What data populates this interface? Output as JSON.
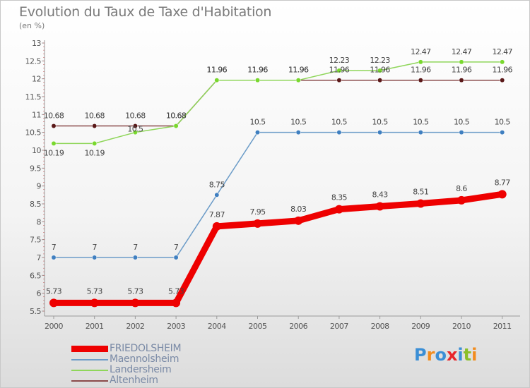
{
  "title": "Evolution du Taux de Taxe d'Habitation",
  "subtitle": "(en %)",
  "logo": {
    "text": "Proxiti",
    "letters": [
      "P",
      "r",
      "o",
      "x",
      "i",
      "t",
      "i"
    ],
    "colors": [
      "#3b8fd6",
      "#f28c1e",
      "#3b8fd6",
      "#e8262b",
      "#3b8fd6",
      "#8bbf29",
      "#f28c1e"
    ]
  },
  "chart_data": {
    "type": "line",
    "x": [
      "2000",
      "2001",
      "2002",
      "2003",
      "2004",
      "2005",
      "2006",
      "2007",
      "2008",
      "2009",
      "2010",
      "2011"
    ],
    "ylim": [
      5.5,
      13
    ],
    "yticks": [
      "5.5",
      "6",
      "6.5",
      "7",
      "7.5",
      "8",
      "8.5",
      "9",
      "9.5",
      "10",
      "10.5",
      "11",
      "11.5",
      "12",
      "12.5",
      "13"
    ],
    "grid": false,
    "legend_position": "bottom-left",
    "series": [
      {
        "name": "FRIEDOLSHEIM",
        "color": "#ee0000",
        "width": 9,
        "values": [
          5.73,
          5.73,
          5.73,
          5.73,
          7.87,
          7.95,
          8.03,
          8.35,
          8.43,
          8.51,
          8.6,
          8.77
        ],
        "labels": [
          "5.73",
          "5.73",
          "5.73",
          "5.73",
          "7.87",
          "7.95",
          "8.03",
          "8.35",
          "8.43",
          "8.51",
          "8.6",
          "8.77"
        ]
      },
      {
        "name": "Maennolsheim",
        "color": "#6c9cc8",
        "point": "#3f7fc0",
        "width": 1.5,
        "values": [
          7,
          7,
          7,
          7,
          8.75,
          10.5,
          10.5,
          10.5,
          10.5,
          10.5,
          10.5,
          10.5
        ],
        "labels": [
          "7",
          "7",
          "7",
          "7",
          "8.75",
          "10.5",
          "10.5",
          "10.5",
          "10.5",
          "10.5",
          "10.5",
          "10.5"
        ]
      },
      {
        "name": "Landersheim",
        "color": "#8fd65a",
        "point": "#79d82e",
        "width": 1.5,
        "values": [
          10.19,
          10.19,
          10.5,
          10.68,
          11.96,
          11.96,
          11.96,
          12.23,
          12.23,
          12.47,
          12.47,
          12.47
        ],
        "labels": [
          "10.19",
          "10.19",
          "10.5",
          "10.68",
          "11.96",
          "11.96",
          "11.96",
          "12.23",
          "12.23",
          "12.47",
          "12.47",
          "12.47"
        ]
      },
      {
        "name": "Altenheim",
        "color": "#8a4a4a",
        "point": "#5a1818",
        "width": 1.5,
        "values": [
          10.68,
          10.68,
          10.68,
          10.68,
          11.96,
          11.96,
          11.96,
          11.96,
          11.96,
          11.96,
          11.96,
          11.96
        ],
        "labels": [
          "10.68",
          "10.68",
          "10.68",
          "10.68",
          "11.96",
          "11.96",
          "11.96",
          "11.96",
          "11.96",
          "11.96",
          "11.96",
          "11.96"
        ]
      }
    ]
  }
}
